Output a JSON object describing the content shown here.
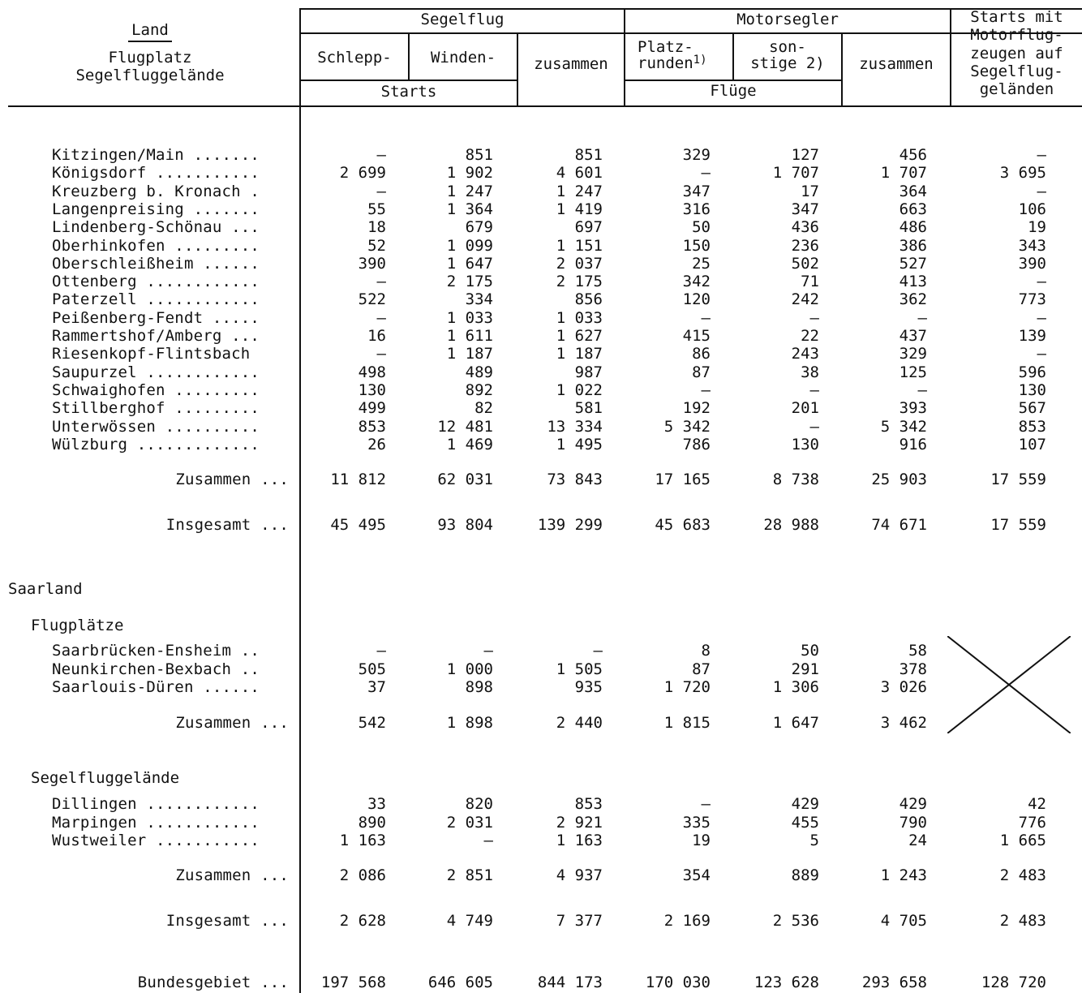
{
  "header": {
    "land": "Land",
    "flugplatz": "Flugplatz",
    "segelfluggelaende": "Segelfluggelände",
    "segelflug": "Segelflug",
    "schlepp": "Schlepp-",
    "winden": "Winden-",
    "zusammen": "zusammen",
    "starts": "Starts",
    "motorsegler": "Motorsegler",
    "platz": "Platz-",
    "runden": "runden",
    "sup1": "1)",
    "sonstige_line1": "son-",
    "sonstige_line2": "stige 2)",
    "fluege": "Flüge",
    "mzusammen": "zusammen",
    "last_col": [
      "Starts mit",
      "Motorflug-",
      "zeugen auf",
      "Segelflug-",
      "geländen"
    ]
  },
  "rows_top": [
    {
      "name": "Kitzingen/Main .......",
      "v": [
        "–",
        "851",
        "851",
        "329",
        "127",
        "456",
        "–"
      ]
    },
    {
      "name": "Königsdorf ...........",
      "v": [
        "2 699",
        "1 902",
        "4 601",
        "–",
        "1 707",
        "1 707",
        "3 695"
      ]
    },
    {
      "name": "Kreuzberg b. Kronach .",
      "v": [
        "–",
        "1 247",
        "1 247",
        "347",
        "17",
        "364",
        "–"
      ]
    },
    {
      "name": "Langenpreising .......",
      "v": [
        "55",
        "1 364",
        "1 419",
        "316",
        "347",
        "663",
        "106"
      ]
    },
    {
      "name": "Lindenberg-Schönau ...",
      "v": [
        "18",
        "679",
        "697",
        "50",
        "436",
        "486",
        "19"
      ]
    },
    {
      "name": "Oberhinkofen .........",
      "v": [
        "52",
        "1 099",
        "1 151",
        "150",
        "236",
        "386",
        "343"
      ]
    },
    {
      "name": "Oberschleißheim ......",
      "v": [
        "390",
        "1 647",
        "2 037",
        "25",
        "502",
        "527",
        "390"
      ]
    },
    {
      "name": "Ottenberg ............",
      "v": [
        "–",
        "2 175",
        "2 175",
        "342",
        "71",
        "413",
        "–"
      ]
    },
    {
      "name": "Paterzell ............",
      "v": [
        "522",
        "334",
        "856",
        "120",
        "242",
        "362",
        "773"
      ]
    },
    {
      "name": "Peißenberg-Fendt .....",
      "v": [
        "–",
        "1 033",
        "1 033",
        "–",
        "–",
        "–",
        "–"
      ]
    },
    {
      "name": "Rammertshof/Amberg ...",
      "v": [
        "16",
        "1 611",
        "1 627",
        "415",
        "22",
        "437",
        "139"
      ]
    },
    {
      "name": "Riesenkopf-Flintsbach",
      "v": [
        "–",
        "1 187",
        "1 187",
        "86",
        "243",
        "329",
        "–"
      ]
    },
    {
      "name": "Saupurzel ............",
      "v": [
        "498",
        "489",
        "987",
        "87",
        "38",
        "125",
        "596"
      ]
    },
    {
      "name": "Schwaighofen .........",
      "v": [
        "130",
        "892",
        "1 022",
        "–",
        "–",
        "–",
        "130"
      ]
    },
    {
      "name": "Stillberghof .........",
      "v": [
        "499",
        "82",
        "581",
        "192",
        "201",
        "393",
        "567"
      ]
    },
    {
      "name": "Unterwössen ..........",
      "v": [
        "853",
        "12 481",
        "13 334",
        "5 342",
        "–",
        "5 342",
        "853"
      ]
    },
    {
      "name": "Wülzburg .............",
      "v": [
        "26",
        "1 469",
        "1 495",
        "786",
        "130",
        "916",
        "107"
      ]
    }
  ],
  "zusammen_1": {
    "name": "Zusammen ...",
    "v": [
      "11 812",
      "62 031",
      "73 843",
      "17 165",
      "8 738",
      "25 903",
      "17 559"
    ]
  },
  "insgesamt_1": {
    "name": "Insgesamt ...",
    "v": [
      "45 495",
      "93 804",
      "139 299",
      "45 683",
      "28 988",
      "74 671",
      "17 559"
    ]
  },
  "saarland": "Saarland",
  "flugplaetze": "Flugplätze",
  "rows_fp": [
    {
      "name": "Saarbrücken-Ensheim ..",
      "v": [
        "–",
        "–",
        "–",
        "8",
        "50",
        "58"
      ]
    },
    {
      "name": "Neunkirchen-Bexbach ..",
      "v": [
        "505",
        "1 000",
        "1 505",
        "87",
        "291",
        "378"
      ]
    },
    {
      "name": "Saarlouis-Düren ......",
      "v": [
        "37",
        "898",
        "935",
        "1 720",
        "1 306",
        "3 026"
      ]
    }
  ],
  "zusammen_fp": {
    "name": "Zusammen ...",
    "v": [
      "542",
      "1 898",
      "2 440",
      "1 815",
      "1 647",
      "3 462"
    ]
  },
  "segelfluggelaende_section": "Segelfluggelände",
  "rows_sg": [
    {
      "name": "Dillingen ............",
      "v": [
        "33",
        "820",
        "853",
        "–",
        "429",
        "429",
        "42"
      ]
    },
    {
      "name": "Marpingen ............",
      "v": [
        "890",
        "2 031",
        "2 921",
        "335",
        "455",
        "790",
        "776"
      ]
    },
    {
      "name": "Wustweiler ...........",
      "v": [
        "1 163",
        "–",
        "1 163",
        "19",
        "5",
        "24",
        "1 665"
      ]
    }
  ],
  "zusammen_sg": {
    "name": "Zusammen ...",
    "v": [
      "2 086",
      "2 851",
      "4 937",
      "354",
      "889",
      "1 243",
      "2 483"
    ]
  },
  "insgesamt_2": {
    "name": "Insgesamt ...",
    "v": [
      "2 628",
      "4 749",
      "7 377",
      "2 169",
      "2 536",
      "4 705",
      "2 483"
    ]
  },
  "bundesgebiet": {
    "name": "Bundesgebiet ...",
    "v": [
      "197 568",
      "646 605",
      "844 173",
      "170 030",
      "123 628",
      "293 658",
      "128 720"
    ]
  }
}
